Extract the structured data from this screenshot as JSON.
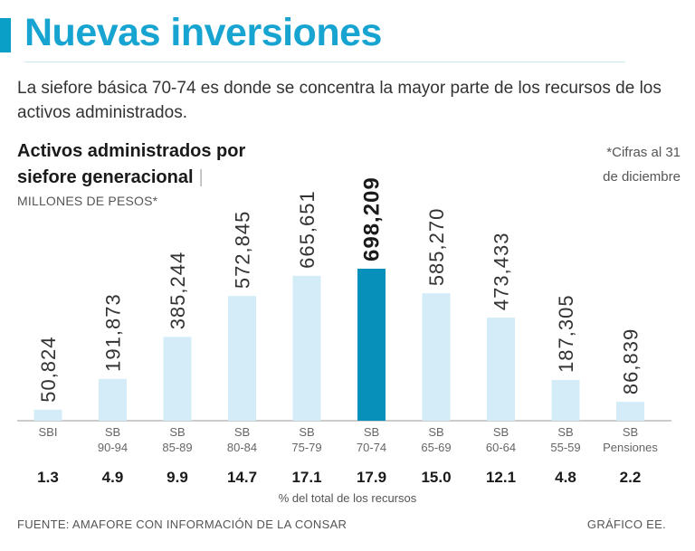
{
  "header": {
    "title": "Nuevas inversiones",
    "subtitle": "La siefore básica 70-74 es donde se concentra la mayor parte de los recursos de los activos administrados."
  },
  "chart_data": {
    "type": "bar",
    "title_line1": "Activos administrados por",
    "title_line2": "siefore generacional",
    "title_sep": "|",
    "ylabel": "MILLONES DE PESOS*",
    "note_line1": "*Cifras al 31",
    "note_line2": "de diciembre",
    "categories": [
      [
        "SBI"
      ],
      [
        "SB",
        "90-94"
      ],
      [
        "SB",
        "85-89"
      ],
      [
        "SB",
        "80-84"
      ],
      [
        "SB",
        "75-79"
      ],
      [
        "SB",
        "70-74"
      ],
      [
        "SB",
        "65-69"
      ],
      [
        "SB",
        "60-64"
      ],
      [
        "SB",
        "55-59"
      ],
      [
        "SB",
        "Pensiones"
      ]
    ],
    "values": [
      50824,
      191873,
      385244,
      572845,
      665651,
      698209,
      585270,
      473433,
      187305,
      86839
    ],
    "value_labels": [
      "50,824",
      "191,873",
      "385,244",
      "572,845",
      "665,651",
      "698,209",
      "585,270",
      "473,433",
      "187,305",
      "86,839"
    ],
    "percent_labels": [
      "1.3",
      "4.9",
      "9.9",
      "14.7",
      "17.1",
      "17.9",
      "15.0",
      "12.1",
      "4.8",
      "2.2"
    ],
    "percent_caption": "% del total de los recursos",
    "highlight_index": 5,
    "ylim": [
      0,
      698209
    ],
    "colors": {
      "bar": "#d3ecf8",
      "highlight": "#0790b9",
      "axis": "#999999"
    }
  },
  "footer": {
    "source": "FUENTE: AMAFORE CON INFORMACIÓN DE LA CONSAR",
    "credit": "GRÁFICO EE."
  }
}
